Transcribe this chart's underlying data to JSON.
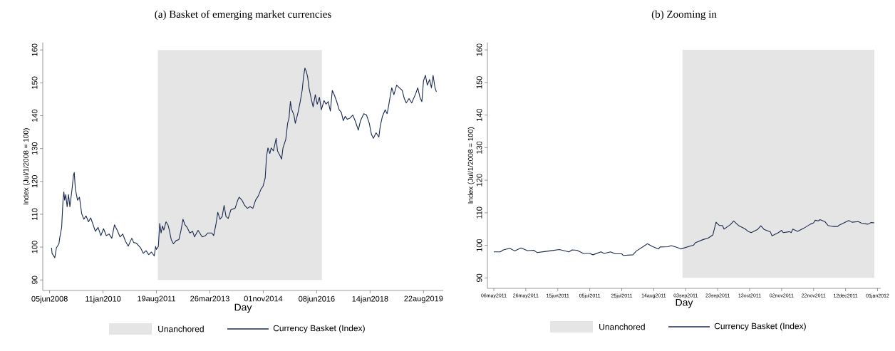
{
  "chart_data": [
    {
      "type": "line",
      "title": "(a) Basket of emerging market currencies",
      "xlabel": "Day",
      "ylabel": "Index (Jul/1/2008 = 100)",
      "legend": "bottom",
      "xlim": [
        "2008-03-22",
        "2020-03-25"
      ],
      "ylim": [
        86.8,
        162.3
      ],
      "xticks": [
        {
          "value": "2008-06-05",
          "label": "05jun2008"
        },
        {
          "value": "2010-01-11",
          "label": "11jan2010"
        },
        {
          "value": "2011-08-19",
          "label": "19aug2011"
        },
        {
          "value": "2013-03-26",
          "label": "26mar2013"
        },
        {
          "value": "2014-11-01",
          "label": "01nov2014"
        },
        {
          "value": "2016-06-08",
          "label": "08jun2016"
        },
        {
          "value": "2018-01-14",
          "label": "14jan2018"
        },
        {
          "value": "2019-08-22",
          "label": "22aug2019"
        }
      ],
      "yticks": [
        90,
        100,
        110,
        120,
        130,
        140,
        150,
        160
      ],
      "bands": [
        {
          "axis": "x",
          "from": "2011-09-03",
          "to": "2016-08-04",
          "label": "Unanchored",
          "color": "#e5e5e5"
        }
      ],
      "x": [
        "2008-06-26",
        "2008-07-02",
        "2008-08-01",
        "2008-08-19",
        "2008-09-15",
        "2008-09-24",
        "2008-10-15",
        "2008-10-24",
        "2008-10-30",
        "2008-11-08",
        "2008-11-17",
        "2008-11-29",
        "2008-12-14",
        "2008-12-29",
        "2009-01-13",
        "2009-02-06",
        "2009-02-21",
        "2009-03-02",
        "2009-03-14",
        "2009-04-07",
        "2009-04-28",
        "2009-05-22",
        "2009-06-15",
        "2009-07-09",
        "2009-08-05",
        "2009-08-29",
        "2009-09-25",
        "2009-10-19",
        "2009-11-18",
        "2009-12-18",
        "2010-01-17",
        "2010-02-16",
        "2010-03-18",
        "2010-04-17",
        "2010-05-17",
        "2010-06-16",
        "2010-07-16",
        "2010-08-15",
        "2010-09-14",
        "2010-10-14",
        "2010-11-22",
        "2010-12-13",
        "2011-01-12",
        "2011-02-26",
        "2011-03-28",
        "2011-04-27",
        "2011-05-27",
        "2011-06-26",
        "2011-07-26",
        "2011-08-10",
        "2011-08-19",
        "2011-09-09",
        "2011-09-24",
        "2011-10-09",
        "2011-10-24",
        "2011-11-08",
        "2011-12-02",
        "2011-12-23",
        "2012-01-07",
        "2012-01-28",
        "2012-02-21",
        "2012-03-22",
        "2012-04-21",
        "2012-05-12",
        "2012-06-05",
        "2012-06-26",
        "2012-07-20",
        "2012-08-19",
        "2012-09-18",
        "2012-10-09",
        "2012-11-17",
        "2013-01-01",
        "2013-02-06",
        "2013-03-02",
        "2013-04-16",
        "2013-05-07",
        "2013-05-31",
        "2013-06-21",
        "2013-07-15",
        "2013-08-08",
        "2013-08-29",
        "2013-09-19",
        "2013-10-13",
        "2013-11-12",
        "2013-12-27",
        "2014-01-26",
        "2014-02-10",
        "2014-03-12",
        "2014-04-11",
        "2014-05-11",
        "2014-06-10",
        "2014-07-10",
        "2014-08-09",
        "2014-09-08",
        "2014-10-08",
        "2014-10-29",
        "2014-11-22",
        "2014-12-07",
        "2014-12-22",
        "2015-01-12",
        "2015-01-27",
        "2015-02-20",
        "2015-03-22",
        "2015-04-06",
        "2015-05-06",
        "2015-05-21",
        "2015-06-05",
        "2015-07-05",
        "2015-07-26",
        "2015-08-10",
        "2015-08-25",
        "2015-09-09",
        "2015-10-03",
        "2015-10-18",
        "2015-11-17",
        "2015-12-11",
        "2016-01-01",
        "2016-01-16",
        "2016-01-31",
        "2016-02-15",
        "2016-03-01",
        "2016-03-16",
        "2016-04-09",
        "2016-04-30",
        "2016-05-24",
        "2016-06-14",
        "2016-07-08",
        "2016-07-29",
        "2016-08-28",
        "2016-09-18",
        "2016-10-12",
        "2016-11-05",
        "2016-11-26",
        "2016-12-17",
        "2017-01-10",
        "2017-02-09",
        "2017-03-05",
        "2017-03-26",
        "2017-04-16",
        "2017-05-10",
        "2017-06-09",
        "2017-07-09",
        "2017-08-08",
        "2017-09-07",
        "2017-10-01",
        "2017-11-06",
        "2017-12-06",
        "2018-01-05",
        "2018-01-29",
        "2018-02-19",
        "2018-03-21",
        "2018-04-20",
        "2018-05-05",
        "2018-05-29",
        "2018-06-28",
        "2018-07-19",
        "2018-08-03",
        "2018-08-18",
        "2018-09-08",
        "2018-10-02",
        "2018-11-01",
        "2018-12-01",
        "2018-12-31",
        "2019-01-24",
        "2019-02-14",
        "2019-03-16",
        "2019-04-15",
        "2019-05-30",
        "2019-06-20",
        "2019-07-14",
        "2019-08-04",
        "2019-08-22",
        "2019-09-12",
        "2019-10-03",
        "2019-10-27",
        "2019-11-17",
        "2019-12-05",
        "2019-12-26",
        "2020-01-10"
      ],
      "series": [
        {
          "name": "Currency Basket (Index)",
          "color": "#1a2a50",
          "values": [
            99.8,
            98.1,
            96.8,
            99.8,
            101,
            102.8,
            106,
            111,
            114.3,
            116.8,
            114.3,
            116,
            112.3,
            116,
            112.3,
            117.7,
            121.8,
            122.7,
            117.7,
            114.3,
            115.2,
            110.2,
            108.5,
            109.5,
            107.7,
            108.9,
            106.8,
            104.8,
            106,
            103.5,
            105.6,
            103.5,
            104,
            102.7,
            106.8,
            105.1,
            103.1,
            104,
            101.8,
            100.3,
            102.7,
            101.4,
            101.2,
            99.8,
            98.1,
            98.9,
            97.7,
            98.5,
            97.3,
            100.2,
            99.3,
            100.2,
            107.2,
            104.3,
            106.4,
            105.2,
            107.7,
            106.8,
            105.2,
            102.3,
            101,
            102,
            102.3,
            104.8,
            108.5,
            106.8,
            106,
            104.3,
            104.8,
            103.1,
            105.1,
            103.1,
            103.5,
            104.3,
            104.3,
            103.5,
            106.8,
            110.6,
            108.5,
            109.3,
            112.7,
            109.3,
            108.7,
            111.4,
            111.8,
            114.3,
            115.2,
            114.3,
            112.7,
            111.8,
            112.3,
            111.8,
            114.3,
            115.6,
            117.7,
            118.5,
            121,
            127.7,
            130.2,
            128.5,
            130.2,
            129.3,
            133.1,
            129.3,
            127.7,
            126.8,
            130.2,
            132.7,
            137.7,
            139.3,
            144.3,
            141.8,
            140.2,
            137.7,
            141,
            144.3,
            147.7,
            151.8,
            154.5,
            153.5,
            151.8,
            148.5,
            145.2,
            142.7,
            146.4,
            143.5,
            145.6,
            141.8,
            144.6,
            143.5,
            144.3,
            141.4,
            147.7,
            146.4,
            144.6,
            141.8,
            141,
            138.5,
            139.8,
            138.9,
            139.3,
            140.2,
            138.1,
            135.6,
            138.5,
            140.6,
            140.2,
            137.7,
            134.3,
            133.1,
            134.8,
            133.5,
            136.8,
            139.8,
            141.8,
            140.6,
            142.7,
            145.2,
            148.5,
            146.4,
            149.3,
            148.5,
            147.7,
            145.2,
            143.9,
            145.2,
            143.9,
            146.8,
            148.5,
            145.6,
            144.3,
            150.6,
            152.3,
            149.3,
            151,
            148.5,
            152.3,
            148.5,
            147.3
          ]
        }
      ]
    },
    {
      "type": "line",
      "title": "(b) Zooming in",
      "xlabel": "Day",
      "ylabel": "Index (Jul/1/2008 = 100)",
      "legend": "bottom",
      "xlim": [
        "2011-05-02",
        "2012-01-03"
      ],
      "ylim": [
        86.8,
        162.3
      ],
      "xticks": [
        {
          "value": "2011-05-06",
          "label": "06may2011"
        },
        {
          "value": "2011-05-26",
          "label": "26may2011"
        },
        {
          "value": "2011-06-15",
          "label": "15jun2011"
        },
        {
          "value": "2011-07-05",
          "label": "05jul2011"
        },
        {
          "value": "2011-07-25",
          "label": "25jul2011"
        },
        {
          "value": "2011-08-14",
          "label": "14aug2011"
        },
        {
          "value": "2011-09-03",
          "label": "03sep2011"
        },
        {
          "value": "2011-09-23",
          "label": "23sep2011"
        },
        {
          "value": "2011-10-13",
          "label": "13oct2011"
        },
        {
          "value": "2011-11-02",
          "label": "02nov2011"
        },
        {
          "value": "2011-11-22",
          "label": "22nov2011"
        },
        {
          "value": "2011-12-12",
          "label": "12dec2011"
        },
        {
          "value": "2012-01-01",
          "label": "01jan2012"
        }
      ],
      "yticks": [
        90,
        100,
        110,
        120,
        130,
        140,
        150,
        160
      ],
      "bands": [
        {
          "axis": "x",
          "from": "2011-09-01",
          "to": "2011-12-30",
          "label": "Unanchored",
          "color": "#e5e5e5"
        }
      ],
      "x": [
        "2011-05-06",
        "2011-05-10",
        "2011-05-12",
        "2011-05-16",
        "2011-05-19",
        "2011-05-23",
        "2011-05-27",
        "2011-05-31",
        "2011-06-02",
        "2011-06-10",
        "2011-06-16",
        "2011-06-22",
        "2011-06-24",
        "2011-06-27",
        "2011-07-01",
        "2011-07-05",
        "2011-07-07",
        "2011-07-12",
        "2011-07-14",
        "2011-07-18",
        "2011-07-21",
        "2011-07-25",
        "2011-07-26",
        "2011-08-01",
        "2011-08-03",
        "2011-08-08",
        "2011-08-10",
        "2011-08-13",
        "2011-08-17",
        "2011-08-18",
        "2011-08-23",
        "2011-08-25",
        "2011-08-29",
        "2011-08-31",
        "2011-09-06",
        "2011-09-08",
        "2011-09-09",
        "2011-09-14",
        "2011-09-17",
        "2011-09-20",
        "2011-09-22",
        "2011-09-24",
        "2011-09-26",
        "2011-09-27",
        "2011-10-01",
        "2011-10-03",
        "2011-10-06",
        "2011-10-10",
        "2011-10-12",
        "2011-10-14",
        "2011-10-18",
        "2011-10-20",
        "2011-10-22",
        "2011-10-26",
        "2011-10-27",
        "2011-10-31",
        "2011-11-02",
        "2011-11-03",
        "2011-11-07",
        "2011-11-08",
        "2011-11-09",
        "2011-11-12",
        "2011-11-16",
        "2011-11-20",
        "2011-11-22",
        "2011-11-23",
        "2011-11-25",
        "2011-11-26",
        "2011-11-29",
        "2011-12-01",
        "2011-12-04",
        "2011-12-07",
        "2011-12-08",
        "2011-12-14",
        "2011-12-16",
        "2011-12-20",
        "2011-12-22",
        "2011-12-26",
        "2011-12-28",
        "2011-12-30"
      ],
      "series": [
        {
          "name": "Currency Basket (Index)",
          "color": "#1a2a50",
          "values": [
            98.0,
            98.0,
            98.6,
            99.1,
            98.3,
            99.2,
            98.4,
            98.5,
            97.8,
            98.3,
            98.7,
            98.0,
            98.6,
            98.5,
            97.5,
            97.5,
            97.1,
            98.0,
            97.5,
            98.0,
            97.4,
            97.4,
            96.9,
            97.1,
            98.2,
            99.8,
            100.5,
            99.7,
            98.9,
            99.5,
            99.6,
            99.9,
            99.3,
            98.9,
            99.8,
            100.1,
            100.8,
            101.8,
            102.2,
            103.2,
            107.1,
            106.1,
            106.1,
            105.0,
            106.4,
            107.5,
            106.1,
            105.1,
            104.3,
            103.9,
            104.9,
            106.0,
            104.9,
            104.1,
            102.9,
            103.9,
            104.6,
            103.9,
            104.2,
            103.9,
            105.0,
            104.3,
            105.3,
            106.5,
            106.9,
            107.7,
            107.5,
            107.9,
            107.3,
            106.1,
            105.8,
            105.8,
            106.2,
            107.6,
            107.1,
            107.3,
            106.8,
            106.5,
            107.0,
            106.9
          ]
        }
      ]
    }
  ]
}
